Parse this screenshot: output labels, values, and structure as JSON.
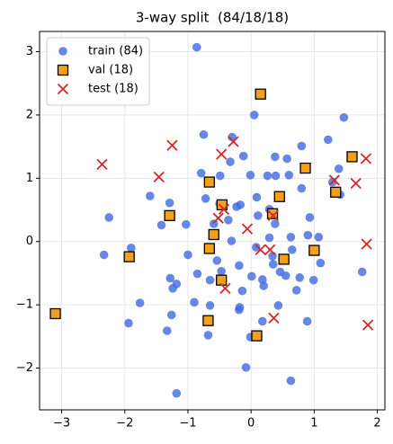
{
  "chart_data": {
    "type": "scatter",
    "title": "3-way split  (84/18/18)",
    "xlim": [
      -3.35,
      2.12
    ],
    "ylim": [
      -2.66,
      3.32
    ],
    "xticks": [
      {
        "value": -3,
        "label": "−3"
      },
      {
        "value": -2,
        "label": "−2"
      },
      {
        "value": -1,
        "label": "−1"
      },
      0,
      1,
      2
    ],
    "yticks": [
      {
        "value": -2,
        "label": "−2"
      },
      {
        "value": -1,
        "label": "−1"
      },
      0,
      1,
      2,
      3
    ],
    "grid": true,
    "legend": "upper left",
    "series": [
      {
        "name": "train (84)",
        "color": "#4169e1",
        "marker": "circle",
        "x": [
          -0.86,
          -2.33,
          -2.25,
          -1.9,
          -1.94,
          -1.76,
          -1.6,
          -1.42,
          -1.29,
          -1.28,
          -1.24,
          -1.26,
          -1.33,
          -1.18,
          -1.03,
          -1.0,
          -1.18,
          -0.85,
          -0.79,
          -0.75,
          -0.72,
          -0.65,
          -0.65,
          -0.68,
          -0.59,
          -0.54,
          -0.5,
          -0.49,
          -0.36,
          -0.3,
          -0.23,
          -0.19,
          -0.18,
          -0.17,
          -0.14,
          -0.19,
          -0.12,
          -0.08,
          -0.01,
          -0.01,
          0.01,
          0.05,
          0.09,
          0.11,
          0.18,
          0.18,
          0.2,
          0.26,
          0.29,
          0.34,
          0.35,
          0.38,
          0.39,
          0.38,
          0.43,
          0.46,
          0.55,
          0.57,
          0.6,
          0.63,
          0.65,
          0.72,
          0.77,
          0.63,
          0.8,
          0.8,
          0.9,
          0.93,
          0.89,
          0.99,
          1.07,
          1.22,
          1.29,
          1.39,
          1.41,
          1.47,
          1.76,
          1.1,
          -0.47,
          -0.33,
          -0.31,
          0.08,
          -0.9,
          0.29
        ],
        "y": [
          3.07,
          -0.21,
          0.38,
          -0.1,
          -1.29,
          -0.97,
          0.72,
          0.26,
          0.61,
          -0.58,
          -0.74,
          -1.16,
          -1.41,
          -0.67,
          0.27,
          -0.21,
          -2.4,
          -0.51,
          1.08,
          1.69,
          0.68,
          -0.61,
          -1.01,
          -1.48,
          0.28,
          -0.3,
          0.6,
          1.04,
          0.34,
          1.65,
          0.55,
          -0.38,
          -1.04,
          0.58,
          -0.78,
          -1.08,
          1.35,
          -1.99,
          -1.51,
          1.05,
          -0.55,
          2.0,
          0.7,
          0.41,
          -0.6,
          -1.26,
          -0.7,
          1.04,
          0.51,
          -0.23,
          -0.36,
          1.34,
          1.04,
          0.28,
          -1.01,
          -0.48,
          -0.54,
          1.31,
          1.05,
          0.07,
          -0.13,
          -0.77,
          -0.57,
          -2.2,
          1.51,
          0.84,
          0.1,
          0.38,
          -1.26,
          -0.61,
          0.07,
          1.61,
          0.94,
          1.15,
          0.74,
          1.96,
          -0.48,
          -0.34,
          -0.47,
          1.26,
          0.01,
          -0.09,
          -0.96,
          0.06
        ]
      },
      {
        "name": "val (18)",
        "color": "#f5a01a",
        "marker": "square",
        "x": [
          -3.1,
          -1.93,
          -1.29,
          -0.66,
          -0.46,
          -0.59,
          -0.66,
          -0.47,
          -0.68,
          0.09,
          0.15,
          0.34,
          0.45,
          0.52,
          0.86,
          1.0,
          1.34,
          1.6
        ],
        "y": [
          -1.14,
          -0.24,
          0.41,
          0.94,
          0.58,
          0.11,
          -0.11,
          -0.61,
          -1.25,
          -1.49,
          2.33,
          0.44,
          0.71,
          -0.28,
          1.16,
          -0.14,
          0.78,
          1.34
        ]
      },
      {
        "name": "test (18)",
        "color": "#d62728",
        "marker": "x",
        "x": [
          -2.36,
          -1.46,
          -1.25,
          -0.47,
          -0.28,
          -0.52,
          -0.43,
          -0.06,
          -0.41,
          0.15,
          0.3,
          0.35,
          0.36,
          1.32,
          1.66,
          1.82,
          1.83,
          1.85
        ],
        "y": [
          1.22,
          1.02,
          1.52,
          1.38,
          1.58,
          0.37,
          0.51,
          0.2,
          -0.74,
          -0.13,
          -0.13,
          0.41,
          -1.21,
          0.97,
          0.92,
          1.31,
          -0.04,
          -1.32
        ]
      }
    ]
  }
}
